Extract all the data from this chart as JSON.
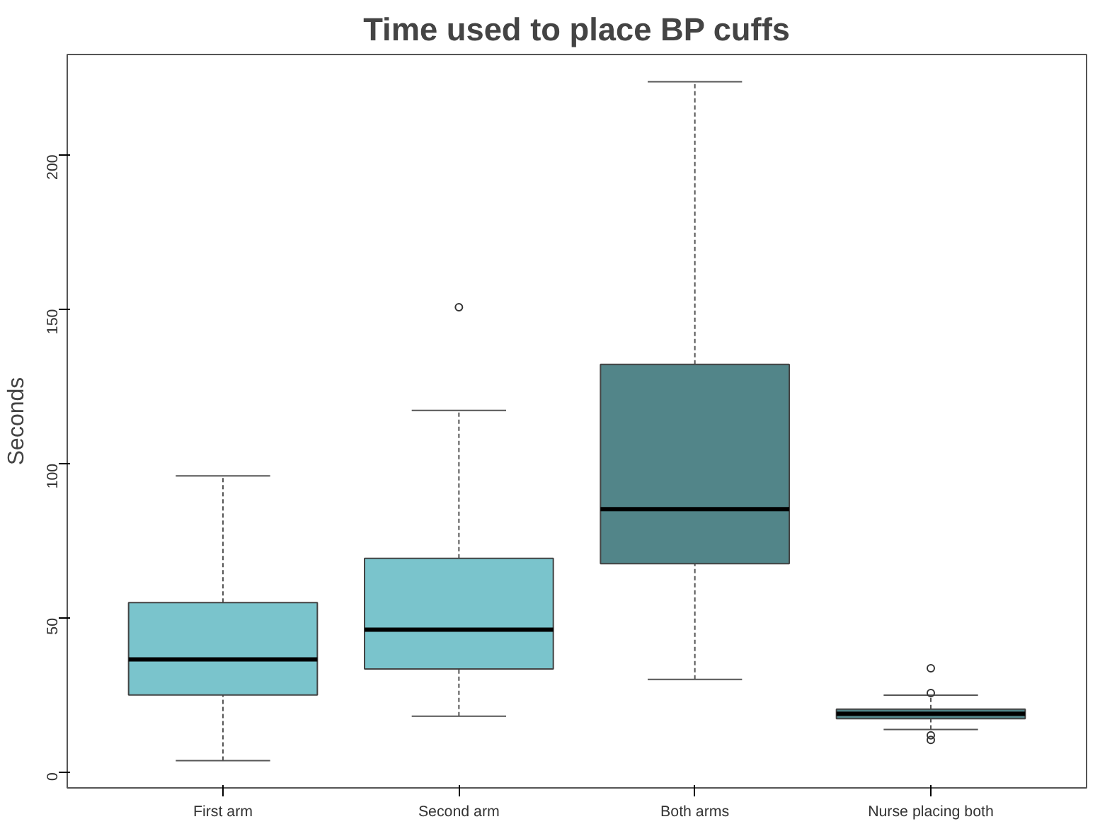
{
  "chart_data": {
    "type": "box",
    "title": "Time used to place BP cuffs",
    "ylabel": "Seconds",
    "categories": [
      "First arm",
      "Second arm",
      "Both arms",
      "Nurse placing both"
    ],
    "colors": [
      "#7ac4cc",
      "#7ac4cc",
      "#528589",
      "#528589"
    ],
    "boxes": [
      {
        "low": 3.8,
        "q1": 25.1,
        "median": 36.6,
        "q3": 55.0,
        "high": 96.0
      },
      {
        "low": 18.2,
        "q1": 33.5,
        "median": 46.2,
        "q3": 69.3,
        "high": 117.2,
        "outliers": [
          150.6
        ]
      },
      {
        "low": 30.1,
        "q1": 67.6,
        "median": 85.2,
        "q3": 132.1,
        "high": 223.6
      },
      {
        "low": 13.9,
        "q1": 17.4,
        "median": 19.0,
        "q3": 20.5,
        "high": 25.0,
        "outliers": [
          33.7,
          25.7,
          12.0,
          10.5
        ]
      }
    ],
    "ylim": [
      -5,
      232.4
    ],
    "yticks": [
      0,
      50,
      100,
      150,
      200
    ],
    "grid": false
  }
}
